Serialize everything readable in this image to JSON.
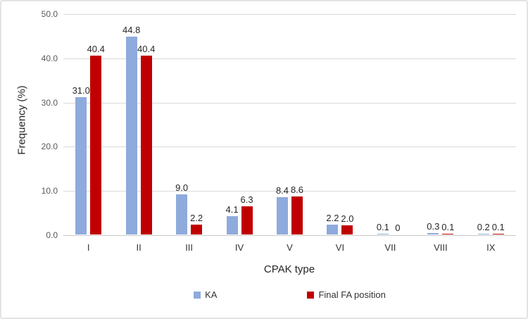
{
  "chart_data": {
    "type": "bar",
    "title": "",
    "categories": [
      "I",
      "II",
      "III",
      "IV",
      "V",
      "VI",
      "VII",
      "VIII",
      "IX"
    ],
    "series": [
      {
        "name": "KA",
        "color": "#8FAADC",
        "values": [
          31.0,
          44.8,
          9.0,
          4.1,
          8.4,
          2.2,
          0.1,
          0.3,
          0.2
        ],
        "labels": [
          "31.0",
          "44.8",
          "9.0",
          "4.1",
          "8.4",
          "2.2",
          "0.1",
          "0.3",
          "0.2"
        ]
      },
      {
        "name": "Final FA position",
        "color": "#C00000",
        "values": [
          40.4,
          40.4,
          2.2,
          6.3,
          8.6,
          2.0,
          0,
          0.1,
          0.1
        ],
        "labels": [
          "40.4",
          "40.4",
          "2.2",
          "6.3",
          "8.6",
          "2.0",
          "0",
          "0.1",
          "0.1"
        ]
      }
    ],
    "xlabel": "CPAK type",
    "ylabel": "Frequency (%)",
    "ylim": [
      0,
      50
    ],
    "ytick_step": 10,
    "ytick_labels": [
      "0.0",
      "10.0",
      "20.0",
      "30.0",
      "40.0",
      "50.0"
    ],
    "grid": true,
    "legend_position": "bottom",
    "colors": {
      "gridline": "#D9D9D9",
      "tick_text": "#595959",
      "label_text": "#262626"
    }
  }
}
